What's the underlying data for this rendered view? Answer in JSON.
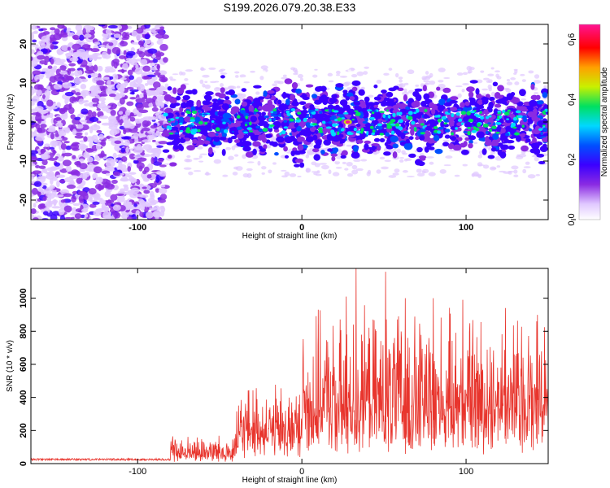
{
  "title": "S199.2026.079.20.38.E33",
  "chart_data": [
    {
      "type": "heatmap",
      "name": "spectrogram",
      "xlabel": "Height of straight line (km)",
      "ylabel": "Frequency (Hz)",
      "xlim": [
        -165,
        150
      ],
      "ylim": [
        -25,
        25
      ],
      "xticks": [
        -100,
        0,
        100
      ],
      "yticks": [
        -20,
        -10,
        0,
        10,
        20
      ],
      "colorbar": {
        "label": "Normalized spectral amplitude",
        "range": [
          0.0,
          0.65
        ],
        "ticks": [
          0.0,
          0.2,
          0.4,
          0.6
        ],
        "colors": [
          "#ffffff",
          "#e0c8ff",
          "#8a2be2",
          "#3b00ff",
          "#0050ff",
          "#00d8ff",
          "#00e060",
          "#c8f000",
          "#ffa000",
          "#ff0000",
          "#ff1493"
        ]
      },
      "features": {
        "noise_region_x": [
          -165,
          -83
        ],
        "signal_band_x": [
          -83,
          150
        ],
        "signal_band_center_hz": 0,
        "signal_band_halfwidth_hz": 5,
        "peak_amplitude": 0.63,
        "peak_location": [
          28,
          0
        ]
      }
    },
    {
      "type": "line",
      "name": "snr",
      "xlabel": "Height of straight line (km)",
      "ylabel": "SNR (10 * v/v)",
      "xlim": [
        -165,
        150
      ],
      "ylim": [
        0,
        1180
      ],
      "xticks": [
        -100,
        0,
        100
      ],
      "yticks": [
        0,
        200,
        400,
        600,
        800,
        1000
      ],
      "color": "#e8352d",
      "segments": [
        {
          "x_range": [
            -165,
            -80
          ],
          "base": 25,
          "spread": 12
        },
        {
          "x_range": [
            -80,
            -40
          ],
          "base": 60,
          "spread": 120
        },
        {
          "x_range": [
            -40,
            0
          ],
          "base": 180,
          "spread": 320
        },
        {
          "x_range": [
            0,
            30
          ],
          "base": 320,
          "spread": 600
        },
        {
          "x_range": [
            30,
            150
          ],
          "base": 350,
          "spread": 600
        }
      ],
      "peaks": [
        {
          "x": 33,
          "y": 1180
        },
        {
          "x": 51,
          "y": 1160
        },
        {
          "x": 27,
          "y": 1010
        },
        {
          "x": 63,
          "y": 1000
        },
        {
          "x": 80,
          "y": 1000
        },
        {
          "x": 98,
          "y": 990
        },
        {
          "x": 10,
          "y": 930
        },
        {
          "x": 124,
          "y": 940
        },
        {
          "x": 143,
          "y": 860
        }
      ]
    }
  ]
}
